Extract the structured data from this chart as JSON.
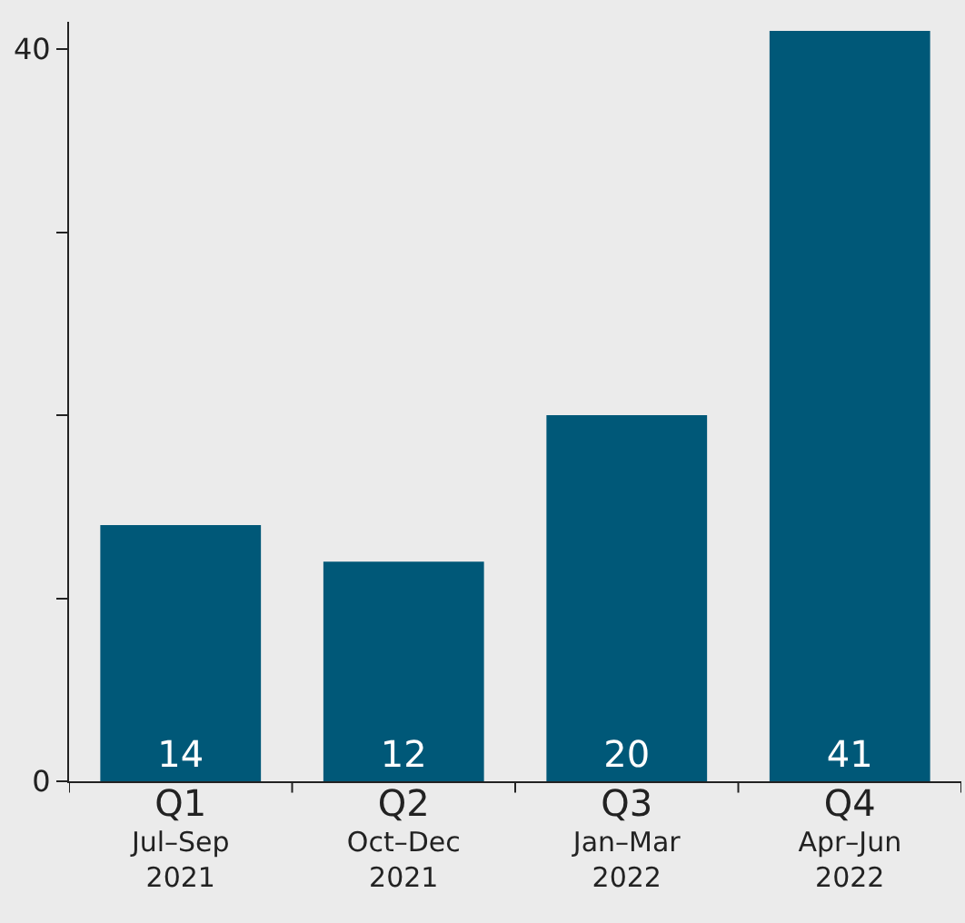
{
  "chart_data": {
    "type": "bar",
    "categories": [
      "Q1\nJul–Sep\n2021",
      "Q2\nOct–Dec\n2021",
      "Q3\nJan–Mar\n2022",
      "Q4\nApr–Jun\n2022"
    ],
    "values": [
      14,
      12,
      20,
      41
    ],
    "color": "#005878",
    "data_labels": true,
    "ylim": [
      0,
      41.5
    ],
    "yticks": [
      0,
      {
        "value": 10,
        "label": null
      },
      {
        "value": 20,
        "label": null
      },
      {
        "value": 30,
        "label": null
      },
      40
    ],
    "grid": false
  }
}
